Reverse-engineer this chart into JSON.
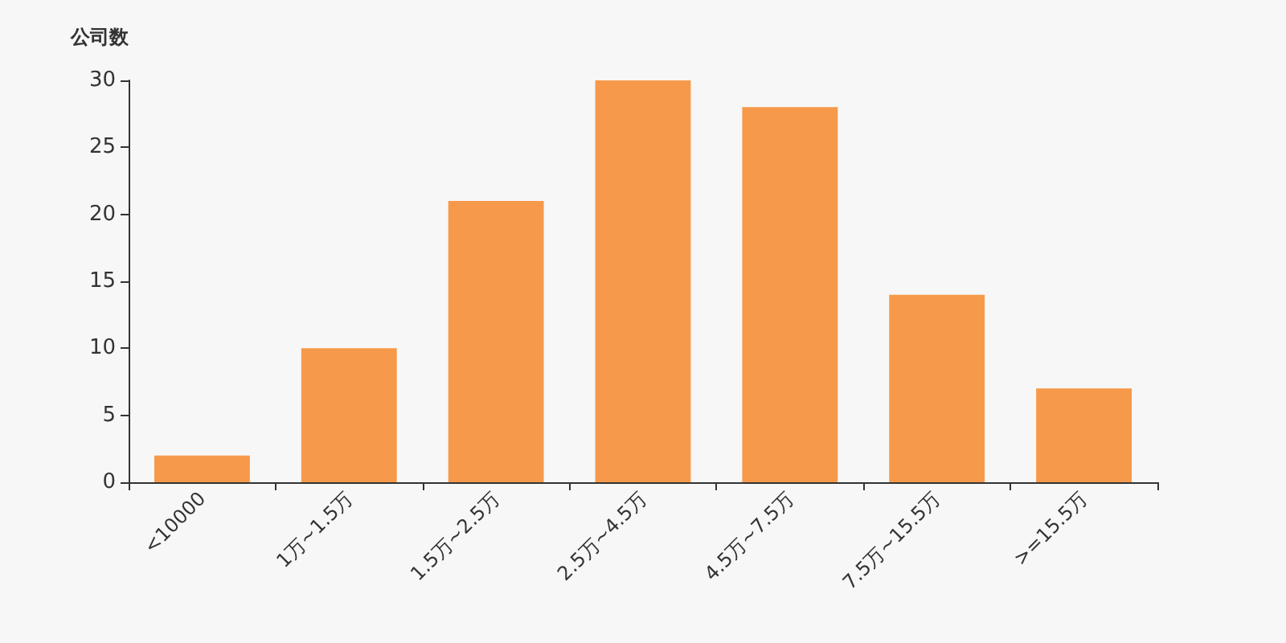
{
  "chart_data": {
    "type": "bar",
    "ylabel": "公司数",
    "categories": [
      "<10000",
      "1万~1.5万",
      "1.5万~2.5万",
      "2.5万~4.5万",
      "4.5万~7.5万",
      "7.5万~15.5万",
      ">=15.5万"
    ],
    "values": [
      2,
      10,
      21,
      30,
      28,
      14,
      7
    ],
    "color": "#f7994a",
    "ylim": [
      0,
      30
    ],
    "yticks": [
      0,
      5,
      10,
      15,
      20,
      25,
      30
    ],
    "grid": false
  }
}
